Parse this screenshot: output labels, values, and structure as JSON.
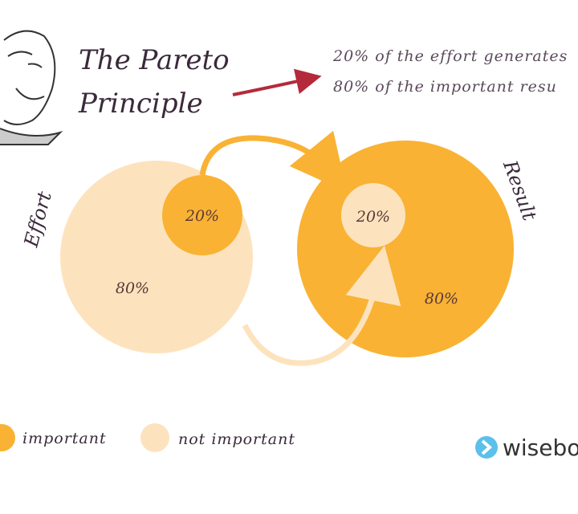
{
  "header": {
    "title_lines": [
      "The Pareto",
      "Principle"
    ],
    "description_lines": [
      "20% of the effort generates",
      "80% of the important resu"
    ]
  },
  "groups": [
    {
      "label": "Effort",
      "inner": "20%",
      "outer": "80%"
    },
    {
      "label": "Result",
      "inner": "20%",
      "outer": "80%"
    }
  ],
  "legend": [
    "important",
    "not important"
  ],
  "logo": "wisebo"
}
